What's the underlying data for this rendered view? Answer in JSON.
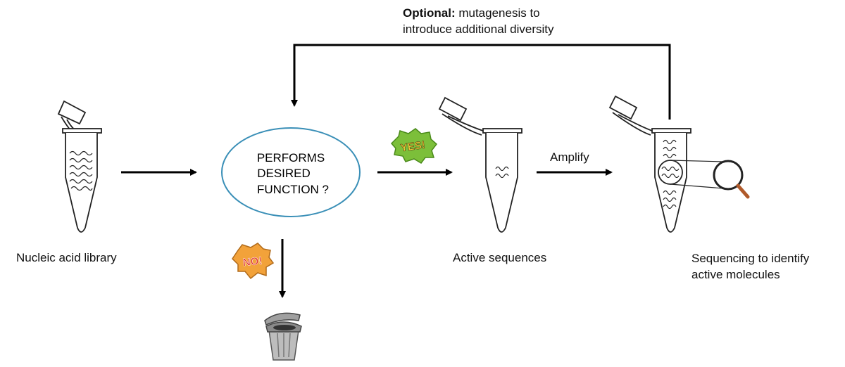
{
  "optional_note": {
    "bold_part": "Optional:",
    "line1_rest": " mutagenesis to",
    "line2": "introduce additional diversity"
  },
  "decision": {
    "line1": "PERFORMS",
    "line2": "DESIRED",
    "line3": "FUNCTION ?"
  },
  "stickers": {
    "yes": "YES!",
    "no": "NO!"
  },
  "labels": {
    "library": "Nucleic acid library",
    "active": "Active sequences",
    "amplify": "Amplify",
    "sequencing_line1": "Sequencing to identify",
    "sequencing_line2": "active molecules"
  },
  "colors": {
    "ellipse_stroke": "#3a8fb7",
    "yes_burst": "#7cbf3a",
    "yes_text": "#f2d23a",
    "no_burst": "#f2a23a",
    "no_text": "#e0342c",
    "trash": "#9a9a9a"
  },
  "icons": [
    "tube-icon",
    "magnifier-icon",
    "trash-can-icon",
    "yes-burst-icon",
    "no-burst-icon"
  ]
}
